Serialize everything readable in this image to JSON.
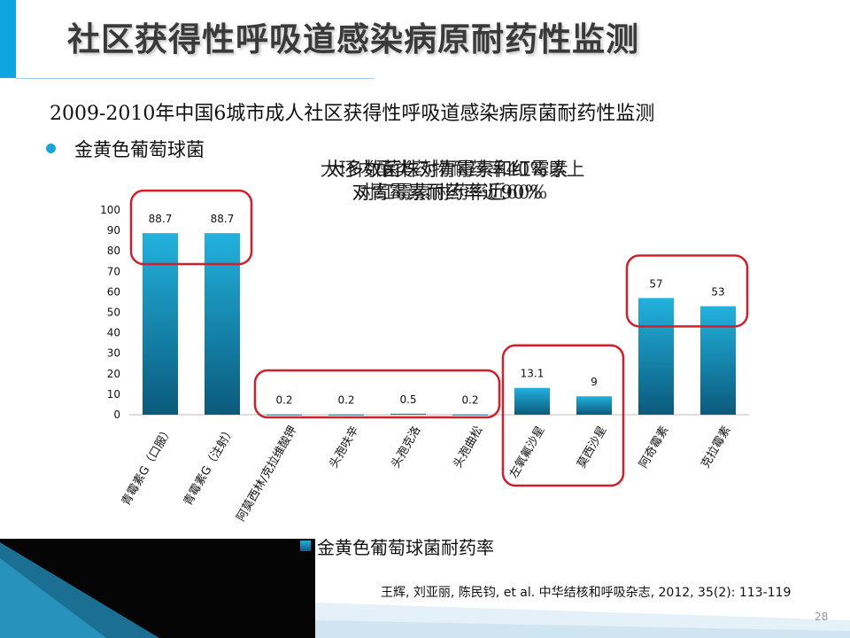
{
  "title": "社区获得性呼吸道感染病原耐药性监测",
  "subtitle": "2009-2010年中国6城市成人社区获得性呼吸道感染病原菌耐药性监测",
  "bullet": "金黄色葡萄球菌",
  "overlay_lines": [
    "大多数菌株对青霉素和红霉素",
    "对青霉素耐药率近90%"
  ],
  "overlay_lines_b": [
    "大环内酯类药物耐药率40%以上",
    "对红霉素耐药率近60%"
  ],
  "legend_label": "金黄色葡萄球菌耐药率",
  "citation": "王辉, 刘亚丽, 陈民钧, et al. 中华结核和呼吸杂志, 2012, 35(2): 113-119",
  "page_number": "28",
  "colors": {
    "accent": "#10a5e0",
    "bar_top": "#22b2de",
    "bar_bottom": "#0b5a7c",
    "highlight": "#d0202a"
  },
  "chart_data": {
    "type": "bar",
    "categories": [
      "青霉素G（口服）",
      "青霉素G（注射）",
      "阿莫西林/克拉维酸钾",
      "头孢呋辛",
      "头孢克洛",
      "头孢曲松",
      "左氧氟沙星",
      "莫西沙星",
      "阿奇霉素",
      "克拉霉素"
    ],
    "series": [
      {
        "name": "金黄色葡萄球菌耐药率",
        "values": [
          88.7,
          88.7,
          0.2,
          0.2,
          0.5,
          0.2,
          13.1,
          9,
          57,
          53
        ]
      }
    ],
    "value_labels": [
      "88.7",
      "88.7",
      "0.2",
      "0.2",
      "0.5",
      "0.2",
      "13.1",
      "9",
      "57",
      "53"
    ],
    "y_ticks": [
      "0",
      "10",
      "20",
      "30",
      "40",
      "50",
      "60",
      "70",
      "80",
      "90",
      "100"
    ],
    "ylim": [
      0,
      100
    ],
    "grid": false,
    "legend_position": "bottom",
    "highlight_groups": [
      [
        0,
        1
      ],
      [
        2,
        5
      ],
      [
        6,
        7
      ],
      [
        8,
        9
      ]
    ]
  }
}
